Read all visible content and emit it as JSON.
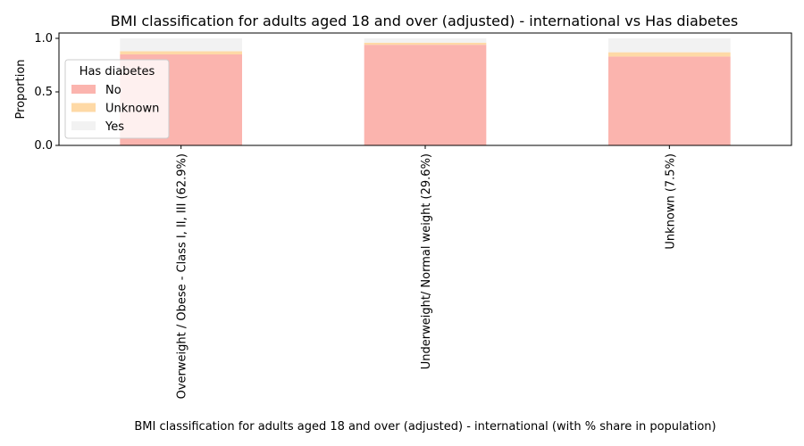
{
  "chart_data": {
    "type": "bar",
    "stacked": true,
    "title": "BMI classification for adults aged 18 and over (adjusted) - international vs Has diabetes",
    "xlabel": "BMI classification for adults aged 18 and over (adjusted) - international (with % share in population)",
    "ylabel": "Proportion",
    "ylim": [
      0,
      1.05
    ],
    "yticks": [
      "0.0",
      "0.5",
      "1.0"
    ],
    "categories": [
      "Overweight / Obese - Class I, II, III (62.9%)",
      "Underweight/ Normal weight (29.6%)",
      "Unknown (7.5%)"
    ],
    "series": [
      {
        "name": "No",
        "color": "#fbb4ae",
        "values": [
          0.85,
          0.94,
          0.83
        ]
      },
      {
        "name": "Unknown",
        "color": "#fed9a6",
        "values": [
          0.03,
          0.02,
          0.04
        ]
      },
      {
        "name": "Yes",
        "color": "#f2f2f2",
        "values": [
          0.12,
          0.04,
          0.13
        ]
      }
    ],
    "legend": {
      "title": "Has diabetes",
      "placement": "upper-left"
    },
    "grid": false
  }
}
